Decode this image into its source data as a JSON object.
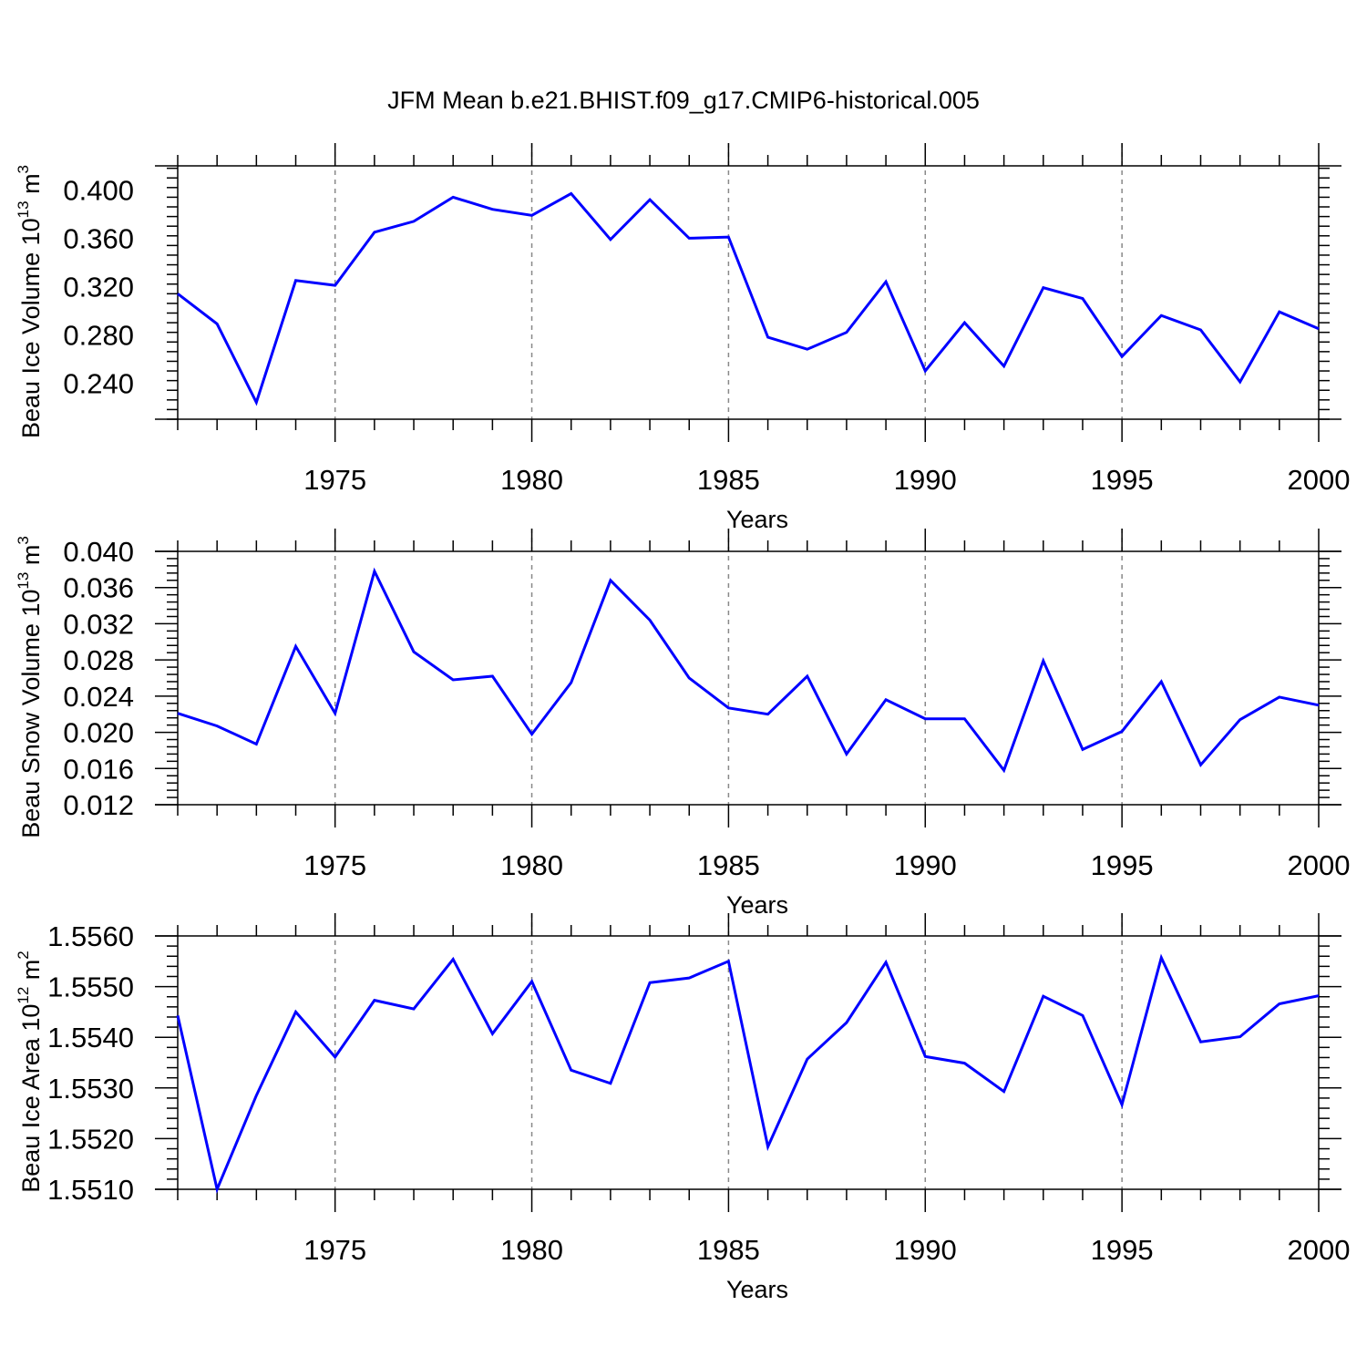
{
  "title": "JFM Mean b.e21.BHIST.f09_g17.CMIP6-historical.005",
  "colors": {
    "series": "#0000ff",
    "axis": "#000000",
    "grid": "#888888"
  },
  "chart_data": [
    {
      "type": "line",
      "ylabel": "Beau Ice Volume 10",
      "ylabel_sup": "13",
      "ylabel_unit": " m",
      "ylabel_unit_sup": "3",
      "xlabel": "Years",
      "xlim": [
        1971,
        2000
      ],
      "ylim": [
        0.21,
        0.42
      ],
      "ytick_values": [
        0.24,
        0.28,
        0.32,
        0.36,
        0.4
      ],
      "ytick_labels": [
        "0.240",
        "0.280",
        "0.320",
        "0.360",
        "0.400"
      ],
      "xtick_values": [
        1975,
        1980,
        1985,
        1990,
        1995,
        2000
      ],
      "xtick_labels": [
        "1975",
        "1980",
        "1985",
        "1990",
        "1995",
        "2000"
      ],
      "grid_x": true,
      "x": [
        1971,
        1972,
        1973,
        1974,
        1975,
        1976,
        1977,
        1978,
        1979,
        1980,
        1981,
        1982,
        1983,
        1984,
        1985,
        1986,
        1987,
        1988,
        1989,
        1990,
        1991,
        1992,
        1993,
        1994,
        1995,
        1996,
        1997,
        1998,
        1999,
        2000
      ],
      "values": [
        0.314,
        0.289,
        0.224,
        0.325,
        0.321,
        0.365,
        0.374,
        0.394,
        0.384,
        0.379,
        0.397,
        0.359,
        0.392,
        0.36,
        0.361,
        0.278,
        0.268,
        0.282,
        0.324,
        0.25,
        0.29,
        0.254,
        0.319,
        0.31,
        0.262,
        0.296,
        0.284,
        0.241,
        0.299,
        0.285
      ]
    },
    {
      "type": "line",
      "ylabel": "Beau Snow Volume 10",
      "ylabel_sup": "13",
      "ylabel_unit": " m",
      "ylabel_unit_sup": "3",
      "xlabel": "Years",
      "xlim": [
        1971,
        2000
      ],
      "ylim": [
        0.012,
        0.04
      ],
      "ytick_values": [
        0.012,
        0.016,
        0.02,
        0.024,
        0.028,
        0.032,
        0.036,
        0.04
      ],
      "ytick_labels": [
        "0.012",
        "0.016",
        "0.020",
        "0.024",
        "0.028",
        "0.032",
        "0.036",
        "0.040"
      ],
      "xtick_values": [
        1975,
        1980,
        1985,
        1990,
        1995,
        2000
      ],
      "xtick_labels": [
        "1975",
        "1980",
        "1985",
        "1990",
        "1995",
        "2000"
      ],
      "grid_x": true,
      "x": [
        1971,
        1972,
        1973,
        1974,
        1975,
        1976,
        1977,
        1978,
        1979,
        1980,
        1981,
        1982,
        1983,
        1984,
        1985,
        1986,
        1987,
        1988,
        1989,
        1990,
        1991,
        1992,
        1993,
        1994,
        1995,
        1996,
        1997,
        1998,
        1999,
        2000
      ],
      "values": [
        0.0221,
        0.0207,
        0.0187,
        0.0295,
        0.0221,
        0.0378,
        0.0289,
        0.0258,
        0.0262,
        0.0198,
        0.0255,
        0.0368,
        0.0324,
        0.026,
        0.0227,
        0.022,
        0.0262,
        0.0176,
        0.0236,
        0.0215,
        0.0215,
        0.0158,
        0.0279,
        0.0181,
        0.0201,
        0.0256,
        0.0164,
        0.0214,
        0.0239,
        0.023
      ]
    },
    {
      "type": "line",
      "ylabel": "Beau Ice Area 10",
      "ylabel_sup": "12",
      "ylabel_unit": " m",
      "ylabel_unit_sup": "2",
      "xlabel": "Years",
      "xlim": [
        1971,
        2000
      ],
      "ylim": [
        1.551,
        1.556
      ],
      "ytick_values": [
        1.551,
        1.552,
        1.553,
        1.554,
        1.555,
        1.556
      ],
      "ytick_labels": [
        "1.5510",
        "1.5520",
        "1.5530",
        "1.5540",
        "1.5550",
        "1.5560"
      ],
      "xtick_values": [
        1975,
        1980,
        1985,
        1990,
        1995,
        2000
      ],
      "xtick_labels": [
        "1975",
        "1980",
        "1985",
        "1990",
        "1995",
        "2000"
      ],
      "grid_x": true,
      "x": [
        1971,
        1972,
        1973,
        1974,
        1975,
        1976,
        1977,
        1978,
        1979,
        1980,
        1981,
        1982,
        1983,
        1984,
        1985,
        1986,
        1987,
        1988,
        1989,
        1990,
        1991,
        1992,
        1993,
        1994,
        1995,
        1996,
        1997,
        1998,
        1999,
        2000
      ],
      "values": [
        1.55443,
        1.551,
        1.55285,
        1.5545,
        1.55361,
        1.55473,
        1.55456,
        1.55554,
        1.55407,
        1.5551,
        1.55335,
        1.55309,
        1.55508,
        1.55517,
        1.5555,
        1.55184,
        1.55357,
        1.55429,
        1.55548,
        1.55362,
        1.55349,
        1.55293,
        1.55481,
        1.55443,
        1.55267,
        1.55557,
        1.55391,
        1.55401,
        1.55466,
        1.55482
      ]
    }
  ]
}
